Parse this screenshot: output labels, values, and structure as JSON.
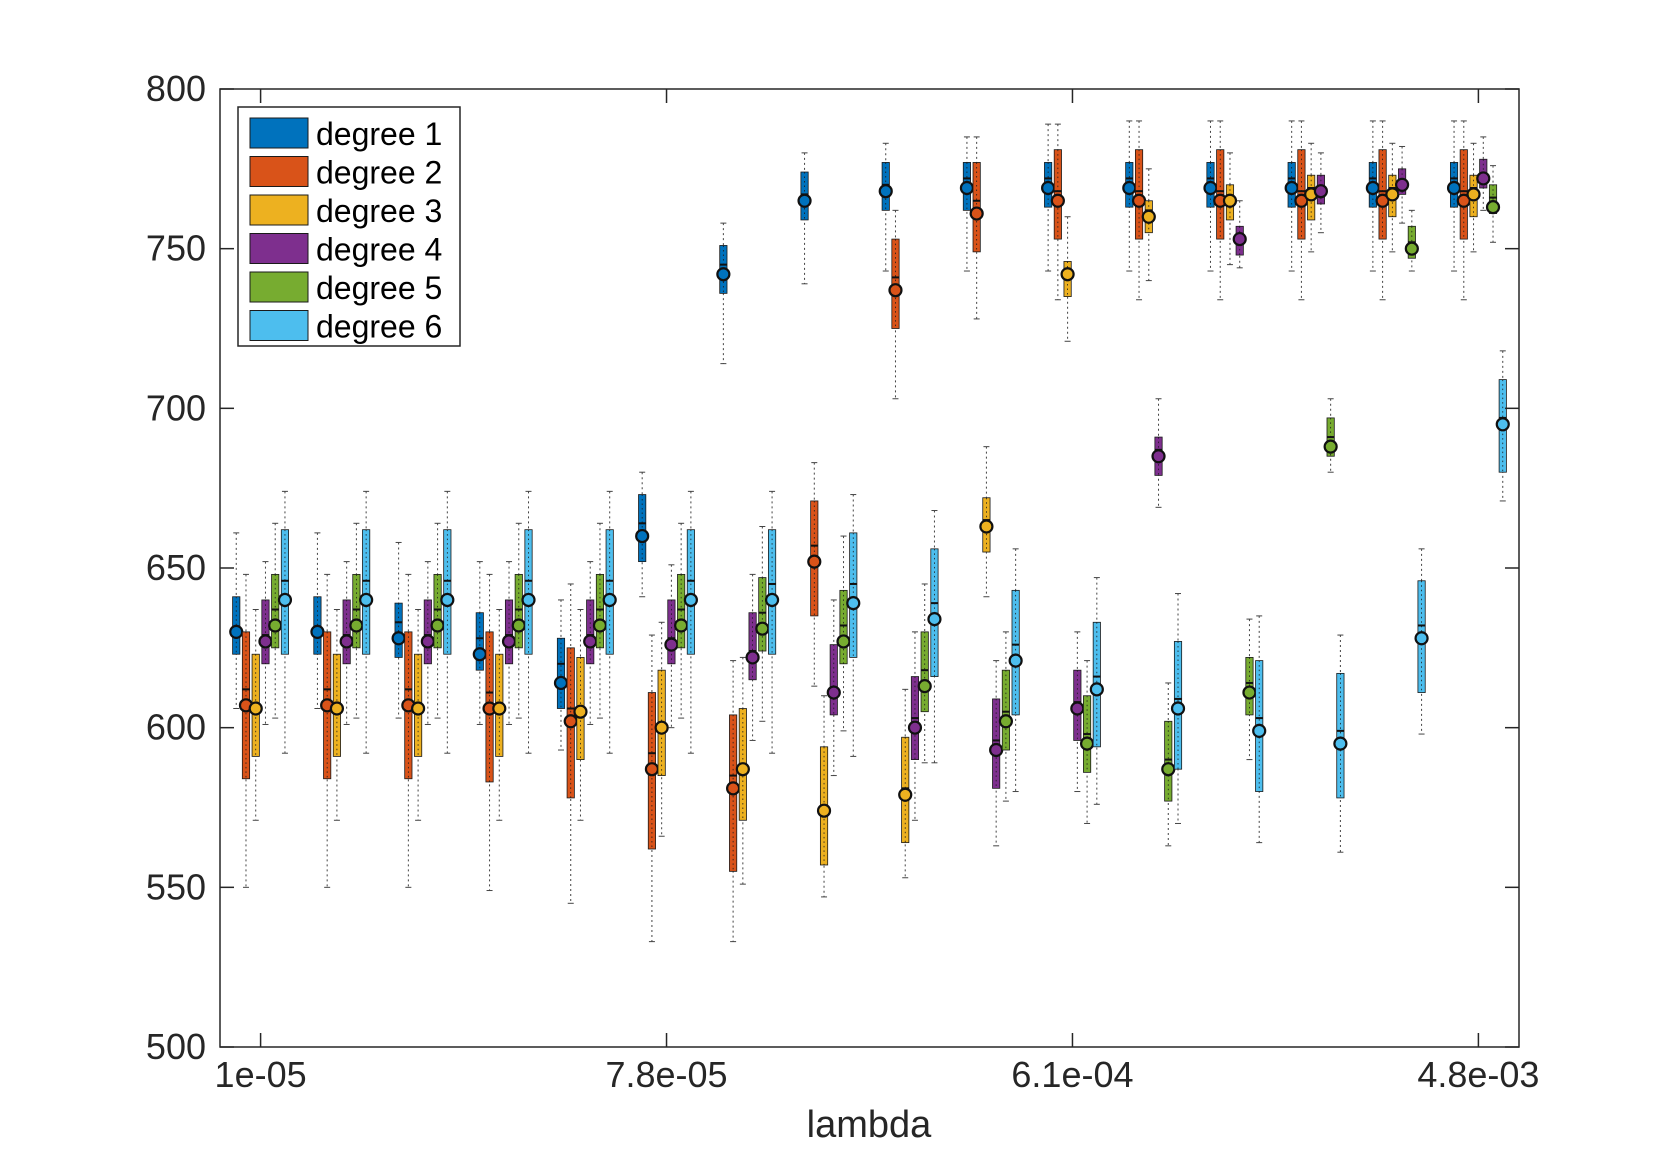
{
  "chart_data": {
    "type": "box",
    "xlabel": "lambda",
    "ylabel": "",
    "ylim": [
      500,
      800
    ],
    "yticks": [
      500,
      550,
      600,
      650,
      700,
      750,
      800
    ],
    "xtick_labels": [
      "1e-05",
      "7.8e-05",
      "6.1e-04",
      "4.8e-03"
    ],
    "xtick_positions": [
      1,
      6,
      11,
      16
    ],
    "x_domain": [
      0.5,
      16.5
    ],
    "lambda_values": [
      1,
      2,
      3,
      4,
      5,
      6,
      7,
      8,
      9,
      10,
      11,
      12,
      13,
      14,
      15,
      16
    ],
    "legend": {
      "location": "top-left"
    },
    "series": [
      {
        "name": "degree 1",
        "color": "#0072BD",
        "boxes": [
          {
            "q1": 623,
            "median": 629,
            "q3": 641,
            "mean": 630,
            "wl": 606,
            "wh": 661
          },
          {
            "q1": 623,
            "median": 629,
            "q3": 641,
            "mean": 630,
            "wl": 606,
            "wh": 661
          },
          {
            "q1": 622,
            "median": 633,
            "q3": 639,
            "mean": 628,
            "wl": 603,
            "wh": 658
          },
          {
            "q1": 618,
            "median": 628,
            "q3": 636,
            "mean": 623,
            "wl": 601,
            "wh": 652
          },
          {
            "q1": 606,
            "median": 620,
            "q3": 628,
            "mean": 614,
            "wl": 593,
            "wh": 640
          },
          {
            "q1": 652,
            "median": 664,
            "q3": 673,
            "mean": 660,
            "wl": 641,
            "wh": 680
          },
          {
            "q1": 736,
            "median": 745,
            "q3": 751,
            "mean": 742,
            "wl": 714,
            "wh": 758
          },
          {
            "q1": 759,
            "median": 767,
            "q3": 774,
            "mean": 765,
            "wl": 739,
            "wh": 780
          },
          {
            "q1": 762,
            "median": 770,
            "q3": 777,
            "mean": 768,
            "wl": 743,
            "wh": 783
          },
          {
            "q1": 762,
            "median": 772,
            "q3": 777,
            "mean": 769,
            "wl": 743,
            "wh": 785
          },
          {
            "q1": 763,
            "median": 772,
            "q3": 777,
            "mean": 769,
            "wl": 743,
            "wh": 789
          },
          {
            "q1": 763,
            "median": 772,
            "q3": 777,
            "mean": 769,
            "wl": 743,
            "wh": 790
          },
          {
            "q1": 763,
            "median": 772,
            "q3": 777,
            "mean": 769,
            "wl": 743,
            "wh": 790
          },
          {
            "q1": 763,
            "median": 772,
            "q3": 777,
            "mean": 769,
            "wl": 743,
            "wh": 790
          },
          {
            "q1": 763,
            "median": 772,
            "q3": 777,
            "mean": 769,
            "wl": 743,
            "wh": 790
          },
          {
            "q1": 763,
            "median": 772,
            "q3": 777,
            "mean": 769,
            "wl": 743,
            "wh": 790
          }
        ]
      },
      {
        "name": "degree 2",
        "color": "#D95319",
        "boxes": [
          {
            "q1": 584,
            "median": 612,
            "q3": 630,
            "mean": 607,
            "wl": 550,
            "wh": 648
          },
          {
            "q1": 584,
            "median": 612,
            "q3": 630,
            "mean": 607,
            "wl": 550,
            "wh": 648
          },
          {
            "q1": 584,
            "median": 612,
            "q3": 630,
            "mean": 607,
            "wl": 550,
            "wh": 648
          },
          {
            "q1": 583,
            "median": 611,
            "q3": 630,
            "mean": 606,
            "wl": 549,
            "wh": 648
          },
          {
            "q1": 578,
            "median": 606,
            "q3": 625,
            "mean": 602,
            "wl": 545,
            "wh": 645
          },
          {
            "q1": 562,
            "median": 592,
            "q3": 611,
            "mean": 587,
            "wl": 533,
            "wh": 629
          },
          {
            "q1": 555,
            "median": 585,
            "q3": 604,
            "mean": 581,
            "wl": 533,
            "wh": 621
          },
          {
            "q1": 635,
            "median": 657,
            "q3": 671,
            "mean": 652,
            "wl": 613,
            "wh": 683
          },
          {
            "q1": 725,
            "median": 741,
            "q3": 753,
            "mean": 737,
            "wl": 703,
            "wh": 762
          },
          {
            "q1": 749,
            "median": 765,
            "q3": 777,
            "mean": 761,
            "wl": 728,
            "wh": 785
          },
          {
            "q1": 753,
            "median": 768,
            "q3": 781,
            "mean": 765,
            "wl": 734,
            "wh": 789
          },
          {
            "q1": 753,
            "median": 768,
            "q3": 781,
            "mean": 765,
            "wl": 734,
            "wh": 790
          },
          {
            "q1": 753,
            "median": 768,
            "q3": 781,
            "mean": 765,
            "wl": 734,
            "wh": 790
          },
          {
            "q1": 753,
            "median": 768,
            "q3": 781,
            "mean": 765,
            "wl": 734,
            "wh": 790
          },
          {
            "q1": 753,
            "median": 768,
            "q3": 781,
            "mean": 765,
            "wl": 734,
            "wh": 790
          },
          {
            "q1": 753,
            "median": 768,
            "q3": 781,
            "mean": 765,
            "wl": 734,
            "wh": 790
          }
        ]
      },
      {
        "name": "degree 3",
        "color": "#EDB120",
        "boxes": [
          {
            "q1": 591,
            "median": 607,
            "q3": 623,
            "mean": 606,
            "wl": 571,
            "wh": 637
          },
          {
            "q1": 591,
            "median": 607,
            "q3": 623,
            "mean": 606,
            "wl": 571,
            "wh": 637
          },
          {
            "q1": 591,
            "median": 607,
            "q3": 623,
            "mean": 606,
            "wl": 571,
            "wh": 637
          },
          {
            "q1": 591,
            "median": 607,
            "q3": 623,
            "mean": 606,
            "wl": 571,
            "wh": 637
          },
          {
            "q1": 590,
            "median": 606,
            "q3": 622,
            "mean": 605,
            "wl": 571,
            "wh": 637
          },
          {
            "q1": 585,
            "median": 601,
            "q3": 618,
            "mean": 600,
            "wl": 566,
            "wh": 633
          },
          {
            "q1": 571,
            "median": 588,
            "q3": 606,
            "mean": 587,
            "wl": 551,
            "wh": 622
          },
          {
            "q1": 557,
            "median": 575,
            "q3": 594,
            "mean": 574,
            "wl": 547,
            "wh": 610
          },
          {
            "q1": 564,
            "median": 581,
            "q3": 597,
            "mean": 579,
            "wl": 553,
            "wh": 612
          },
          {
            "q1": 655,
            "median": 665,
            "q3": 672,
            "mean": 663,
            "wl": 641,
            "wh": 688
          },
          {
            "q1": 735,
            "median": 743,
            "q3": 746,
            "mean": 742,
            "wl": 721,
            "wh": 760
          },
          {
            "q1": 755,
            "median": 762,
            "q3": 765,
            "mean": 760,
            "wl": 740,
            "wh": 775
          },
          {
            "q1": 759,
            "median": 766,
            "q3": 770,
            "mean": 765,
            "wl": 745,
            "wh": 780
          },
          {
            "q1": 759,
            "median": 769,
            "q3": 773,
            "mean": 767,
            "wl": 749,
            "wh": 783
          },
          {
            "q1": 760,
            "median": 769,
            "q3": 773,
            "mean": 767,
            "wl": 749,
            "wh": 783
          },
          {
            "q1": 760,
            "median": 769,
            "q3": 773,
            "mean": 767,
            "wl": 749,
            "wh": 783
          }
        ]
      },
      {
        "name": "degree 4",
        "color": "#7E2F8E",
        "boxes": [
          {
            "q1": 620,
            "median": 629,
            "q3": 640,
            "mean": 627,
            "wl": 601,
            "wh": 652
          },
          {
            "q1": 620,
            "median": 629,
            "q3": 640,
            "mean": 627,
            "wl": 601,
            "wh": 652
          },
          {
            "q1": 620,
            "median": 629,
            "q3": 640,
            "mean": 627,
            "wl": 601,
            "wh": 652
          },
          {
            "q1": 620,
            "median": 629,
            "q3": 640,
            "mean": 627,
            "wl": 601,
            "wh": 652
          },
          {
            "q1": 620,
            "median": 629,
            "q3": 640,
            "mean": 627,
            "wl": 601,
            "wh": 652
          },
          {
            "q1": 620,
            "median": 628,
            "q3": 640,
            "mean": 626,
            "wl": 600,
            "wh": 651
          },
          {
            "q1": 615,
            "median": 624,
            "q3": 636,
            "mean": 622,
            "wl": 596,
            "wh": 648
          },
          {
            "q1": 604,
            "median": 612,
            "q3": 626,
            "mean": 611,
            "wl": 585,
            "wh": 640
          },
          {
            "q1": 590,
            "median": 603,
            "q3": 616,
            "mean": 600,
            "wl": 571,
            "wh": 630
          },
          {
            "q1": 581,
            "median": 596,
            "q3": 609,
            "mean": 593,
            "wl": 563,
            "wh": 621
          },
          {
            "q1": 596,
            "median": 608,
            "q3": 618,
            "mean": 606,
            "wl": 580,
            "wh": 630
          },
          {
            "q1": 679,
            "median": 687,
            "q3": 691,
            "mean": 685,
            "wl": 669,
            "wh": 703
          },
          {
            "q1": 748,
            "median": 754,
            "q3": 757,
            "mean": 753,
            "wl": 744,
            "wh": 765
          },
          {
            "q1": 764,
            "median": 769,
            "q3": 773,
            "mean": 768,
            "wl": 755,
            "wh": 780
          },
          {
            "q1": 767,
            "median": 771,
            "q3": 775,
            "mean": 770,
            "wl": 758,
            "wh": 782
          },
          {
            "q1": 769,
            "median": 773,
            "q3": 778,
            "mean": 772,
            "wl": 762,
            "wh": 785
          }
        ]
      },
      {
        "name": "degree 5",
        "color": "#77AC30",
        "boxes": [
          {
            "q1": 625,
            "median": 637,
            "q3": 648,
            "mean": 632,
            "wl": 603,
            "wh": 664
          },
          {
            "q1": 625,
            "median": 637,
            "q3": 648,
            "mean": 632,
            "wl": 603,
            "wh": 664
          },
          {
            "q1": 625,
            "median": 637,
            "q3": 648,
            "mean": 632,
            "wl": 603,
            "wh": 664
          },
          {
            "q1": 625,
            "median": 637,
            "q3": 648,
            "mean": 632,
            "wl": 603,
            "wh": 664
          },
          {
            "q1": 625,
            "median": 637,
            "q3": 648,
            "mean": 632,
            "wl": 603,
            "wh": 664
          },
          {
            "q1": 625,
            "median": 637,
            "q3": 648,
            "mean": 632,
            "wl": 603,
            "wh": 664
          },
          {
            "q1": 624,
            "median": 636,
            "q3": 647,
            "mean": 631,
            "wl": 602,
            "wh": 663
          },
          {
            "q1": 620,
            "median": 632,
            "q3": 643,
            "mean": 627,
            "wl": 599,
            "wh": 660
          },
          {
            "q1": 605,
            "median": 618,
            "q3": 630,
            "mean": 613,
            "wl": 589,
            "wh": 645
          },
          {
            "q1": 593,
            "median": 605,
            "q3": 618,
            "mean": 602,
            "wl": 577,
            "wh": 630
          },
          {
            "q1": 586,
            "median": 598,
            "q3": 610,
            "mean": 595,
            "wl": 570,
            "wh": 621
          },
          {
            "q1": 577,
            "median": 590,
            "q3": 602,
            "mean": 587,
            "wl": 563,
            "wh": 614
          },
          {
            "q1": 604,
            "median": 614,
            "q3": 622,
            "mean": 611,
            "wl": 590,
            "wh": 634
          },
          {
            "q1": 685,
            "median": 691,
            "q3": 697,
            "mean": 688,
            "wl": 680,
            "wh": 703
          },
          {
            "q1": 747,
            "median": 752,
            "q3": 757,
            "mean": 750,
            "wl": 743,
            "wh": 762
          },
          {
            "q1": 761,
            "median": 766,
            "q3": 770,
            "mean": 763,
            "wl": 752,
            "wh": 776
          }
        ]
      },
      {
        "name": "degree 6",
        "color": "#4DBEEE",
        "boxes": [
          {
            "q1": 623,
            "median": 646,
            "q3": 662,
            "mean": 640,
            "wl": 592,
            "wh": 674
          },
          {
            "q1": 623,
            "median": 646,
            "q3": 662,
            "mean": 640,
            "wl": 592,
            "wh": 674
          },
          {
            "q1": 623,
            "median": 646,
            "q3": 662,
            "mean": 640,
            "wl": 592,
            "wh": 674
          },
          {
            "q1": 623,
            "median": 646,
            "q3": 662,
            "mean": 640,
            "wl": 592,
            "wh": 674
          },
          {
            "q1": 623,
            "median": 646,
            "q3": 662,
            "mean": 640,
            "wl": 592,
            "wh": 674
          },
          {
            "q1": 623,
            "median": 646,
            "q3": 662,
            "mean": 640,
            "wl": 592,
            "wh": 674
          },
          {
            "q1": 623,
            "median": 645,
            "q3": 662,
            "mean": 640,
            "wl": 592,
            "wh": 674
          },
          {
            "q1": 622,
            "median": 645,
            "q3": 661,
            "mean": 639,
            "wl": 591,
            "wh": 673
          },
          {
            "q1": 616,
            "median": 639,
            "q3": 656,
            "mean": 634,
            "wl": 589,
            "wh": 668
          },
          {
            "q1": 604,
            "median": 626,
            "q3": 643,
            "mean": 621,
            "wl": 580,
            "wh": 656
          },
          {
            "q1": 594,
            "median": 616,
            "q3": 633,
            "mean": 612,
            "wl": 576,
            "wh": 647
          },
          {
            "q1": 587,
            "median": 609,
            "q3": 627,
            "mean": 606,
            "wl": 570,
            "wh": 642
          },
          {
            "q1": 580,
            "median": 603,
            "q3": 621,
            "mean": 599,
            "wl": 564,
            "wh": 635
          },
          {
            "q1": 578,
            "median": 599,
            "q3": 617,
            "mean": 595,
            "wl": 561,
            "wh": 629
          },
          {
            "q1": 611,
            "median": 632,
            "q3": 646,
            "mean": 628,
            "wl": 598,
            "wh": 656
          },
          {
            "q1": 680,
            "median": 697,
            "q3": 709,
            "mean": 695,
            "wl": 671,
            "wh": 718
          }
        ]
      }
    ]
  }
}
